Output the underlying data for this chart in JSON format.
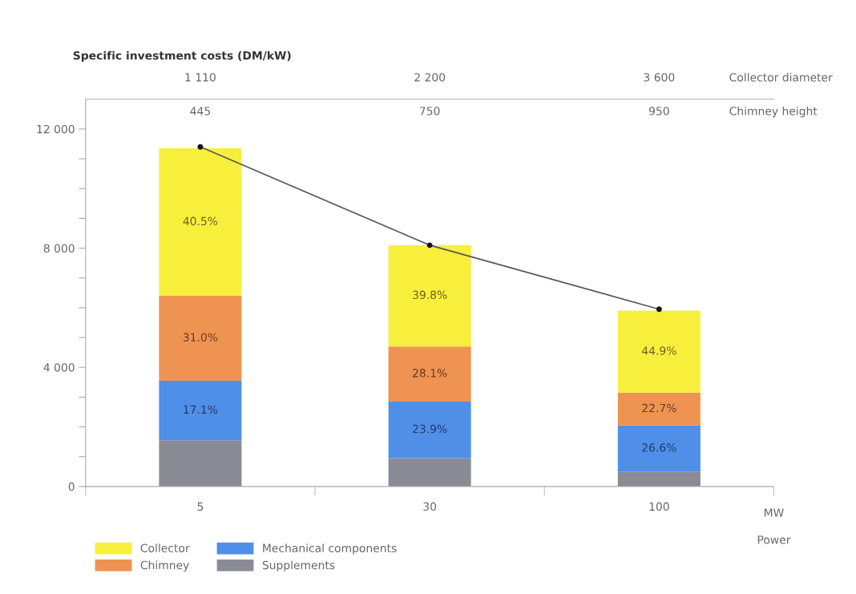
{
  "chart_data": {
    "type": "bar",
    "stacked": true,
    "ylabel": "Specific investment costs (DM/kW)",
    "xlabel": "Power",
    "categories": [
      "5",
      "30",
      "100"
    ],
    "series": [
      {
        "name": "Supplements",
        "color": "#8b8b95",
        "values": [
          1550,
          950,
          500
        ]
      },
      {
        "name": "Mechanical components",
        "color": "#4f8fe8",
        "values": [
          2000,
          1900,
          1550
        ]
      },
      {
        "name": "Chimney",
        "color": "#ef9352",
        "values": [
          2850,
          1850,
          1100
        ]
      },
      {
        "name": "Collector",
        "color": "#f7ef3c",
        "values": [
          4950,
          3400,
          2750
        ]
      },
      {
        "type": "line",
        "color": "#555555",
        "marker": "circle",
        "values": [
          11400,
          8100,
          5950
        ]
      }
    ],
    "ylim": [
      0,
      13000
    ],
    "yticks": [
      0,
      {
        "value": 1000,
        "label": null
      },
      {
        "value": 2000,
        "label": null
      },
      {
        "value": 3000,
        "label": null
      },
      {
        "value": 4000,
        "label": "4 000"
      },
      {
        "value": 5000,
        "label": null
      },
      {
        "value": 6000,
        "label": null
      },
      {
        "value": 7000,
        "label": null
      },
      {
        "value": 8000,
        "label": "8 000"
      },
      {
        "value": 9000,
        "label": null
      },
      {
        "value": 10000,
        "label": null
      },
      {
        "value": 11000,
        "label": null
      },
      {
        "value": 12000,
        "label": "12 000"
      }
    ],
    "annotations": [
      "MW",
      "Collector diameter",
      "Chimney height",
      "1 110",
      "2 200",
      "3 600",
      "445",
      "750",
      "950",
      "17.1%",
      "23.9%",
      "26.6%",
      "31.0%",
      "28.1%",
      "22.7%",
      "40.5%",
      "39.8%",
      "44.9%"
    ],
    "legend": "bottom left",
    "grid": false
  }
}
